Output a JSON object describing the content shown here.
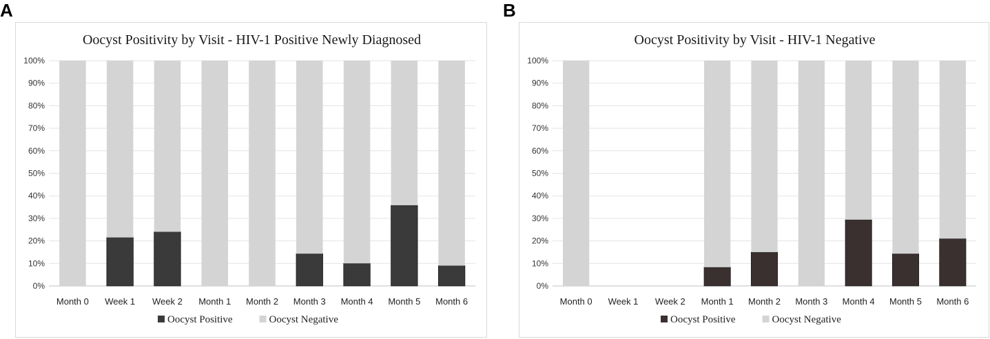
{
  "panel_letters": [
    "A",
    "B"
  ],
  "chart_data": [
    {
      "type": "bar",
      "stacked": "percent",
      "title": "Oocyst Positivity by Visit - HIV-1 Positive Newly Diagnosed",
      "categories": [
        "Month 0",
        "Week 1",
        "Week 2",
        "Month 1",
        "Month 2",
        "Month 3",
        "Month 4",
        "Month 5",
        "Month 6"
      ],
      "series": [
        {
          "name": "Oocyst Positive",
          "values": [
            0,
            21.5,
            24,
            0,
            0,
            14.3,
            10,
            35.8,
            9
          ],
          "color": "#3a3a3a"
        },
        {
          "name": "Oocyst Negative",
          "values": [
            100,
            78.5,
            76,
            100,
            100,
            85.7,
            90,
            64.2,
            91
          ],
          "color": "#d4d4d4"
        }
      ],
      "yticks": [
        "0%",
        "10%",
        "20%",
        "30%",
        "40%",
        "50%",
        "60%",
        "70%",
        "80%",
        "90%",
        "100%"
      ],
      "ylim": [
        0,
        100
      ],
      "grid": true,
      "legend": "bottom"
    },
    {
      "type": "bar",
      "stacked": "percent",
      "title": "Oocyst Positivity by Visit - HIV-1 Negative",
      "categories": [
        "Month 0",
        "Week 1",
        "Week 2",
        "Month 1",
        "Month 2",
        "Month 3",
        "Month 4",
        "Month 5",
        "Month 6"
      ],
      "series": [
        {
          "name": "Oocyst Positive",
          "values": [
            0,
            null,
            null,
            8.3,
            15,
            0,
            29.4,
            14.3,
            21
          ],
          "color": "#3a3030"
        },
        {
          "name": "Oocyst Negative",
          "values": [
            100,
            null,
            null,
            91.7,
            85,
            100,
            70.6,
            85.7,
            79
          ],
          "color": "#d4d4d4"
        }
      ],
      "yticks": [
        "0%",
        "10%",
        "20%",
        "30%",
        "40%",
        "50%",
        "60%",
        "70%",
        "80%",
        "90%",
        "100%"
      ],
      "ylim": [
        0,
        100
      ],
      "grid": true,
      "legend": "bottom"
    }
  ]
}
